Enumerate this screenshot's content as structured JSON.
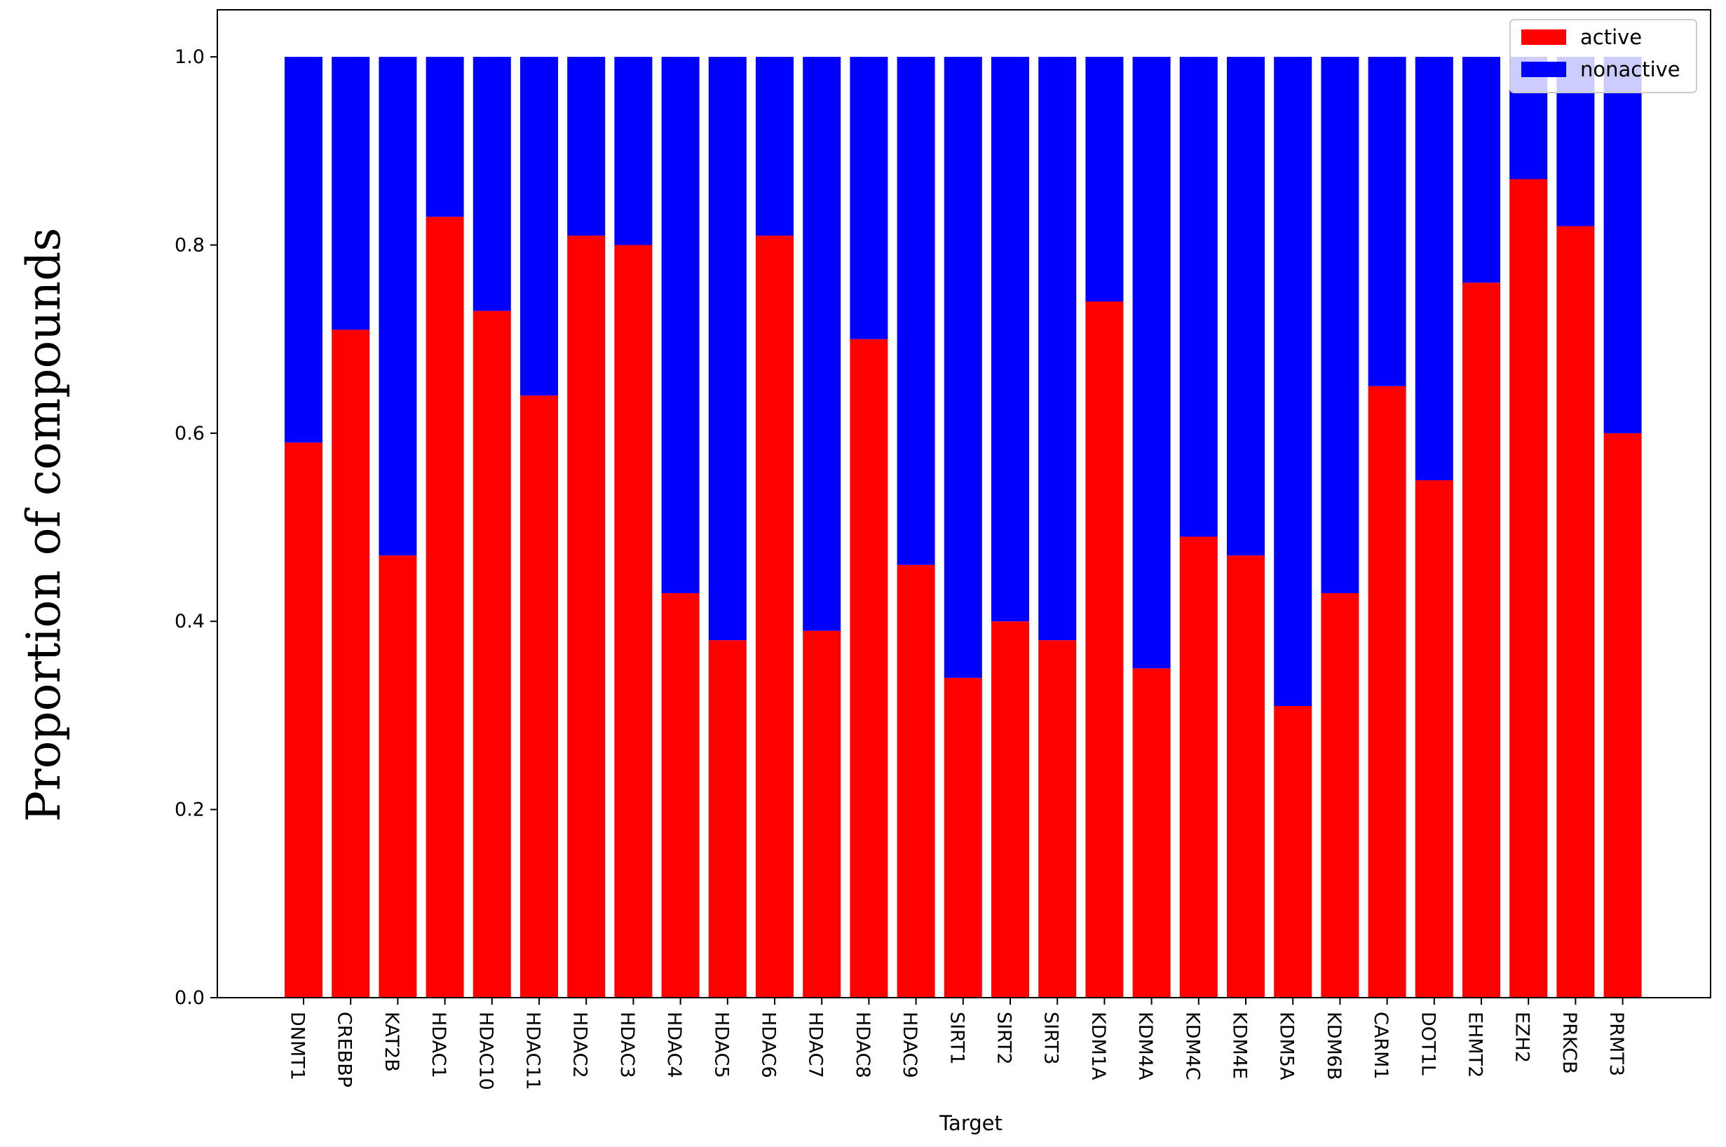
{
  "chart_data": {
    "type": "bar",
    "stacked": true,
    "categories": [
      "DNMT1",
      "CREBBP",
      "KAT2B",
      "HDAC1",
      "HDAC10",
      "HDAC11",
      "HDAC2",
      "HDAC3",
      "HDAC4",
      "HDAC5",
      "HDAC6",
      "HDAC7",
      "HDAC8",
      "HDAC9",
      "SIRT1",
      "SIRT2",
      "SIRT3",
      "KDM1A",
      "KDM4A",
      "KDM4C",
      "KDM4E",
      "KDM5A",
      "KDM6B",
      "CARM1",
      "DOT1L",
      "EHMT2",
      "EZH2",
      "PRKCB",
      "PRMT3"
    ],
    "series": [
      {
        "name": "active",
        "color": "#ff0000",
        "values": [
          0.59,
          0.71,
          0.47,
          0.83,
          0.73,
          0.64,
          0.81,
          0.8,
          0.43,
          0.38,
          0.81,
          0.39,
          0.7,
          0.46,
          0.34,
          0.4,
          0.38,
          0.74,
          0.35,
          0.49,
          0.47,
          0.31,
          0.43,
          0.65,
          0.55,
          0.76,
          0.87,
          0.82,
          0.6
        ]
      },
      {
        "name": "nonactive",
        "color": "#0000ff",
        "values": [
          0.41,
          0.29,
          0.53,
          0.17,
          0.27,
          0.36,
          0.19,
          0.2,
          0.57,
          0.62,
          0.19,
          0.61,
          0.3,
          0.54,
          0.66,
          0.6,
          0.62,
          0.26,
          0.65,
          0.51,
          0.53,
          0.69,
          0.57,
          0.35,
          0.45,
          0.24,
          0.13,
          0.18,
          0.4
        ]
      }
    ],
    "xlabel": "Target",
    "ylabel": "Proportion of compounds",
    "ylim": [
      0,
      1.05
    ],
    "yticks": [
      "0.0",
      "0.2",
      "0.4",
      "0.6",
      "0.8",
      "1.0"
    ],
    "legend_position": "top-right",
    "grid": false
  }
}
